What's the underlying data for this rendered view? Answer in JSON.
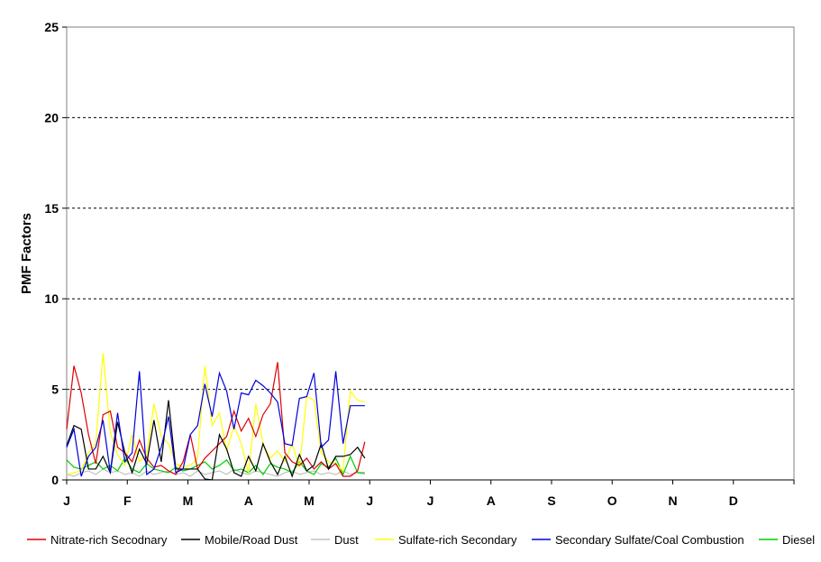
{
  "chart_data": {
    "type": "line",
    "ylabel": "PMF Factors",
    "xlabel": "",
    "ylim": [
      0,
      25
    ],
    "yticks": [
      0,
      5,
      10,
      15,
      20,
      25
    ],
    "x_tick_labels": [
      "J",
      "F",
      "M",
      "A",
      "M",
      "J",
      "J",
      "A",
      "S",
      "O",
      "N",
      "D"
    ],
    "x_domain": [
      0,
      12
    ],
    "grid": "horizontal dashed",
    "legend_position": "bottom",
    "x": [
      0,
      0.12,
      0.24,
      0.36,
      0.48,
      0.6,
      0.72,
      0.84,
      0.96,
      1.08,
      1.2,
      1.32,
      1.44,
      1.56,
      1.68,
      1.8,
      1.92,
      2.04,
      2.16,
      2.28,
      2.4,
      2.52,
      2.64,
      2.76,
      2.88,
      3,
      3.12,
      3.24,
      3.36,
      3.48,
      3.6,
      3.72,
      3.84,
      3.96,
      4.08,
      4.2,
      4.32,
      4.44,
      4.56,
      4.68,
      4.8,
      4.92
    ],
    "series": [
      {
        "name": "Nitrate-rich Secodnary",
        "color": "#dd0000",
        "values": [
          2.8,
          6.3,
          4.8,
          2.5,
          0.9,
          3.6,
          3.8,
          1.8,
          1.5,
          1.0,
          2.2,
          1.2,
          0.7,
          0.8,
          0.5,
          0.3,
          1.0,
          2.5,
          0.6,
          1.2,
          1.6,
          2.0,
          2.4,
          3.8,
          2.7,
          3.4,
          2.4,
          3.6,
          4.2,
          6.5,
          1.5,
          1.0,
          0.8,
          1.2,
          0.6,
          1.0,
          0.6,
          0.9,
          0.2,
          0.2,
          0.5,
          2.1
        ]
      },
      {
        "name": "Mobile/Road Dust",
        "color": "#000000",
        "values": [
          1.9,
          3.0,
          2.8,
          0.6,
          0.6,
          1.3,
          0.4,
          3.2,
          1.5,
          0.4,
          1.7,
          0.9,
          3.3,
          1.0,
          4.4,
          0.6,
          0.6,
          0.6,
          0.6,
          0.05,
          0.0,
          2.5,
          1.7,
          0.4,
          0.2,
          1.3,
          0.5,
          2.0,
          1.0,
          0.3,
          1.3,
          0.2,
          1.4,
          0.5,
          0.8,
          2.0,
          0.6,
          1.3,
          1.3,
          1.4,
          1.8,
          1.2
        ]
      },
      {
        "name": "Dust",
        "color": "#c0c0c0",
        "values": [
          0.3,
          0.2,
          0.4,
          0.5,
          0.3,
          0.6,
          0.4,
          0.5,
          0.3,
          0.4,
          0.2,
          0.5,
          0.3,
          0.4,
          0.5,
          0.3,
          0.4,
          0.2,
          0.5,
          0.3,
          0.4,
          0.5,
          0.3,
          0.6,
          0.4,
          0.3,
          0.5,
          0.4,
          0.3,
          0.2,
          0.4,
          0.5,
          0.3,
          0.4,
          0.5,
          0.3,
          0.4,
          0.3,
          0.5,
          0.3,
          0.4,
          0.3
        ]
      },
      {
        "name": "Sulfate-rich Secondary",
        "color": "#ffff00",
        "values": [
          0.3,
          0.4,
          0.5,
          1.5,
          2.0,
          7.0,
          2.6,
          1.4,
          0.8,
          2.5,
          1.0,
          1.4,
          4.2,
          2.4,
          2.0,
          0.9,
          0.7,
          0.8,
          1.2,
          6.3,
          3.0,
          3.7,
          1.6,
          3.0,
          2.0,
          0.4,
          4.2,
          2.0,
          1.2,
          1.6,
          1.0,
          2.0,
          0.7,
          4.6,
          4.4,
          1.5,
          1.0,
          0.9,
          0.5,
          4.9,
          4.4,
          4.3
        ]
      },
      {
        "name": "Secondary Sulfate/Coal Combustion",
        "color": "#0000dd",
        "values": [
          1.8,
          2.8,
          0.2,
          1.3,
          1.8,
          3.3,
          0.4,
          3.7,
          1.0,
          1.5,
          6.0,
          0.3,
          0.6,
          1.8,
          3.5,
          0.4,
          0.6,
          2.5,
          3.0,
          5.3,
          3.5,
          5.9,
          4.9,
          2.8,
          4.8,
          4.7,
          5.5,
          5.2,
          4.8,
          4.3,
          2.0,
          1.9,
          4.5,
          4.6,
          5.9,
          1.8,
          2.2,
          6.0,
          2.0,
          4.1,
          4.1,
          4.1
        ]
      },
      {
        "name": "Diesel",
        "color": "#00cc00",
        "values": [
          1.1,
          0.7,
          0.6,
          0.8,
          1.0,
          0.6,
          0.8,
          0.5,
          1.2,
          0.6,
          0.4,
          0.9,
          0.6,
          0.5,
          0.4,
          0.7,
          0.5,
          0.6,
          0.8,
          1.0,
          0.6,
          0.8,
          1.1,
          0.5,
          0.6,
          0.4,
          0.8,
          0.3,
          0.9,
          0.7,
          0.6,
          0.4,
          1.0,
          0.5,
          0.3,
          0.9,
          0.7,
          1.2,
          0.3,
          1.3,
          0.4,
          0.4
        ]
      }
    ]
  }
}
